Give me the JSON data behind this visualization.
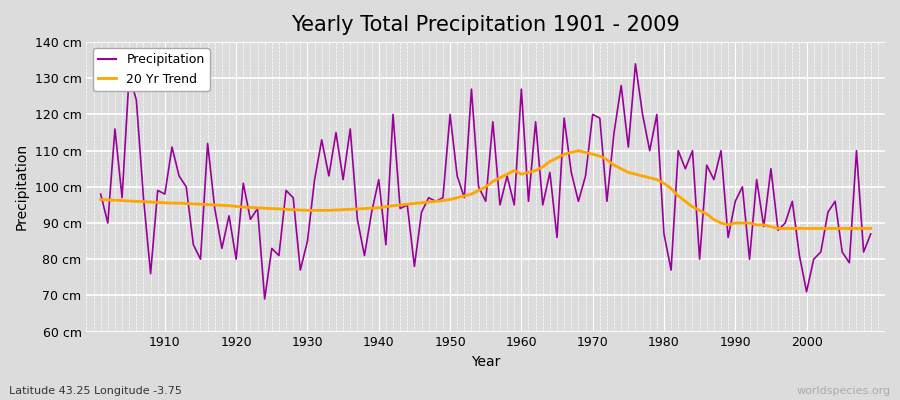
{
  "title": "Yearly Total Precipitation 1901 - 2009",
  "xlabel": "Year",
  "ylabel": "Precipitation",
  "subtitle": "Latitude 43.25 Longitude -3.75",
  "watermark": "worldspecies.org",
  "ylim": [
    60,
    140
  ],
  "yticks": [
    60,
    70,
    80,
    90,
    100,
    110,
    120,
    130,
    140
  ],
  "ytick_labels": [
    "60 cm",
    "70 cm",
    "80 cm",
    "90 cm",
    "100 cm",
    "110 cm",
    "120 cm",
    "130 cm",
    "140 cm"
  ],
  "years": [
    1901,
    1902,
    1903,
    1904,
    1905,
    1906,
    1907,
    1908,
    1909,
    1910,
    1911,
    1912,
    1913,
    1914,
    1915,
    1916,
    1917,
    1918,
    1919,
    1920,
    1921,
    1922,
    1923,
    1924,
    1925,
    1926,
    1927,
    1928,
    1929,
    1930,
    1931,
    1932,
    1933,
    1934,
    1935,
    1936,
    1937,
    1938,
    1939,
    1940,
    1941,
    1942,
    1943,
    1944,
    1945,
    1946,
    1947,
    1948,
    1949,
    1950,
    1951,
    1952,
    1953,
    1954,
    1955,
    1956,
    1957,
    1958,
    1959,
    1960,
    1961,
    1962,
    1963,
    1964,
    1965,
    1966,
    1967,
    1968,
    1969,
    1970,
    1971,
    1972,
    1973,
    1974,
    1975,
    1976,
    1977,
    1978,
    1979,
    1980,
    1981,
    1982,
    1983,
    1984,
    1985,
    1986,
    1987,
    1988,
    1989,
    1990,
    1991,
    1992,
    1993,
    1994,
    1995,
    1996,
    1997,
    1998,
    1999,
    2000,
    2001,
    2002,
    2003,
    2004,
    2005,
    2006,
    2007,
    2008,
    2009
  ],
  "precipitation": [
    98,
    90,
    116,
    97,
    131,
    124,
    97,
    76,
    99,
    98,
    111,
    103,
    100,
    84,
    80,
    112,
    94,
    83,
    92,
    80,
    101,
    91,
    94,
    69,
    83,
    81,
    99,
    97,
    77,
    85,
    102,
    113,
    103,
    115,
    102,
    116,
    91,
    81,
    93,
    102,
    84,
    120,
    94,
    95,
    78,
    93,
    97,
    96,
    97,
    120,
    103,
    97,
    127,
    100,
    96,
    118,
    95,
    103,
    95,
    127,
    96,
    118,
    95,
    104,
    86,
    119,
    104,
    96,
    103,
    120,
    119,
    96,
    115,
    128,
    111,
    134,
    120,
    110,
    120,
    87,
    77,
    110,
    105,
    110,
    80,
    106,
    102,
    110,
    86,
    96,
    100,
    80,
    102,
    89,
    105,
    88,
    90,
    96,
    81,
    71,
    80,
    82,
    93,
    96,
    82,
    79,
    110,
    82,
    87
  ],
  "trend": [
    96.5,
    96.4,
    96.3,
    96.2,
    96.1,
    96.0,
    95.9,
    95.8,
    95.7,
    95.6,
    95.5,
    95.5,
    95.4,
    95.3,
    95.2,
    95.1,
    95.0,
    94.9,
    94.8,
    94.6,
    94.4,
    94.3,
    94.2,
    94.1,
    94.0,
    93.9,
    93.8,
    93.7,
    93.6,
    93.5,
    93.5,
    93.5,
    93.5,
    93.6,
    93.7,
    93.8,
    93.9,
    94.0,
    94.1,
    94.2,
    94.5,
    94.8,
    95.0,
    95.2,
    95.4,
    95.6,
    95.8,
    96.0,
    96.2,
    96.5,
    97.0,
    97.5,
    98.0,
    99.0,
    100.0,
    101.5,
    102.5,
    103.5,
    104.5,
    103.5,
    104.0,
    104.5,
    105.5,
    107.0,
    108.0,
    109.0,
    109.5,
    110.0,
    109.5,
    109.0,
    108.5,
    107.5,
    106.0,
    105.0,
    104.0,
    103.5,
    103.0,
    102.5,
    102.0,
    101.0,
    99.5,
    97.5,
    96.0,
    94.5,
    93.5,
    92.5,
    91.0,
    90.0,
    89.5,
    90.0,
    90.0,
    90.0,
    89.5,
    89.5,
    89.0,
    88.5,
    88.5,
    88.5,
    88.5,
    88.5,
    88.5,
    88.5,
    88.5,
    88.5,
    88.5,
    88.5,
    88.5,
    88.5,
    88.5
  ],
  "precip_color": "#990099",
  "trend_color": "#FFA500",
  "bg_color": "#DCDCDC",
  "plot_bg_color": "#DCDCDC",
  "grid_major_color": "#FFFFFF",
  "grid_minor_color": "#CCCCCC",
  "title_fontsize": 15,
  "label_fontsize": 10,
  "tick_fontsize": 9,
  "xticks": [
    1910,
    1920,
    1930,
    1940,
    1950,
    1960,
    1970,
    1980,
    1990,
    2000
  ]
}
